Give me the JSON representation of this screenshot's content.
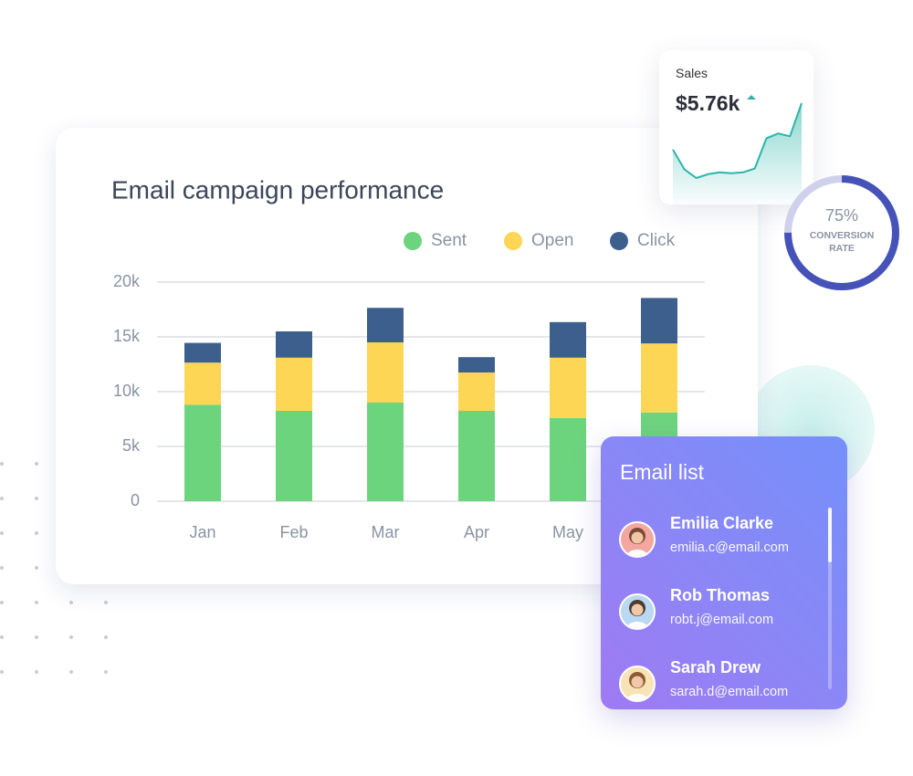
{
  "chart_data": [
    {
      "type": "bar",
      "stacked": true,
      "title": "Email campaign performance",
      "categories": [
        "Jan",
        "Feb",
        "Mar",
        "Apr",
        "May",
        null
      ],
      "series": [
        {
          "name": "Sent",
          "color": "#6dd47e",
          "values": [
            8800,
            8250,
            9000,
            8250,
            7600,
            8100
          ]
        },
        {
          "name": "Open",
          "color": "#fdd656",
          "values": [
            3850,
            4850,
            5500,
            3500,
            5500,
            6300
          ]
        },
        {
          "name": "Click",
          "color": "#3d5f8e",
          "values": [
            1800,
            2400,
            3150,
            1400,
            3250,
            4150
          ]
        }
      ],
      "ylim": [
        0,
        20000
      ],
      "yticks": [
        0,
        {
          "value": 5000,
          "label": "5k"
        },
        {
          "value": 10000,
          "label": "10k"
        },
        {
          "value": 15000,
          "label": "15k"
        },
        {
          "value": 20000,
          "label": "20k"
        }
      ],
      "grid": true,
      "legend": "top-right"
    },
    {
      "type": "area",
      "title": "Sales",
      "headline": "$5.76k",
      "color": "#2bb5a9",
      "values": [
        38,
        17,
        8,
        12,
        14,
        13,
        14,
        18,
        50,
        55,
        52,
        87
      ]
    },
    {
      "type": "donut",
      "values": [
        75
      ],
      "value_labels": [
        "75%"
      ],
      "label": "CONVERSION RATE",
      "color": "#4553b8"
    }
  ],
  "email_list": {
    "title": "Email list",
    "contacts": [
      {
        "name": "Emilia Clarke",
        "email": "emilia.c@email.com"
      },
      {
        "name": "Rob Thomas",
        "email": "robt.j@email.com"
      },
      {
        "name": "Sarah Drew",
        "email": "sarah.d@email.com"
      }
    ]
  }
}
